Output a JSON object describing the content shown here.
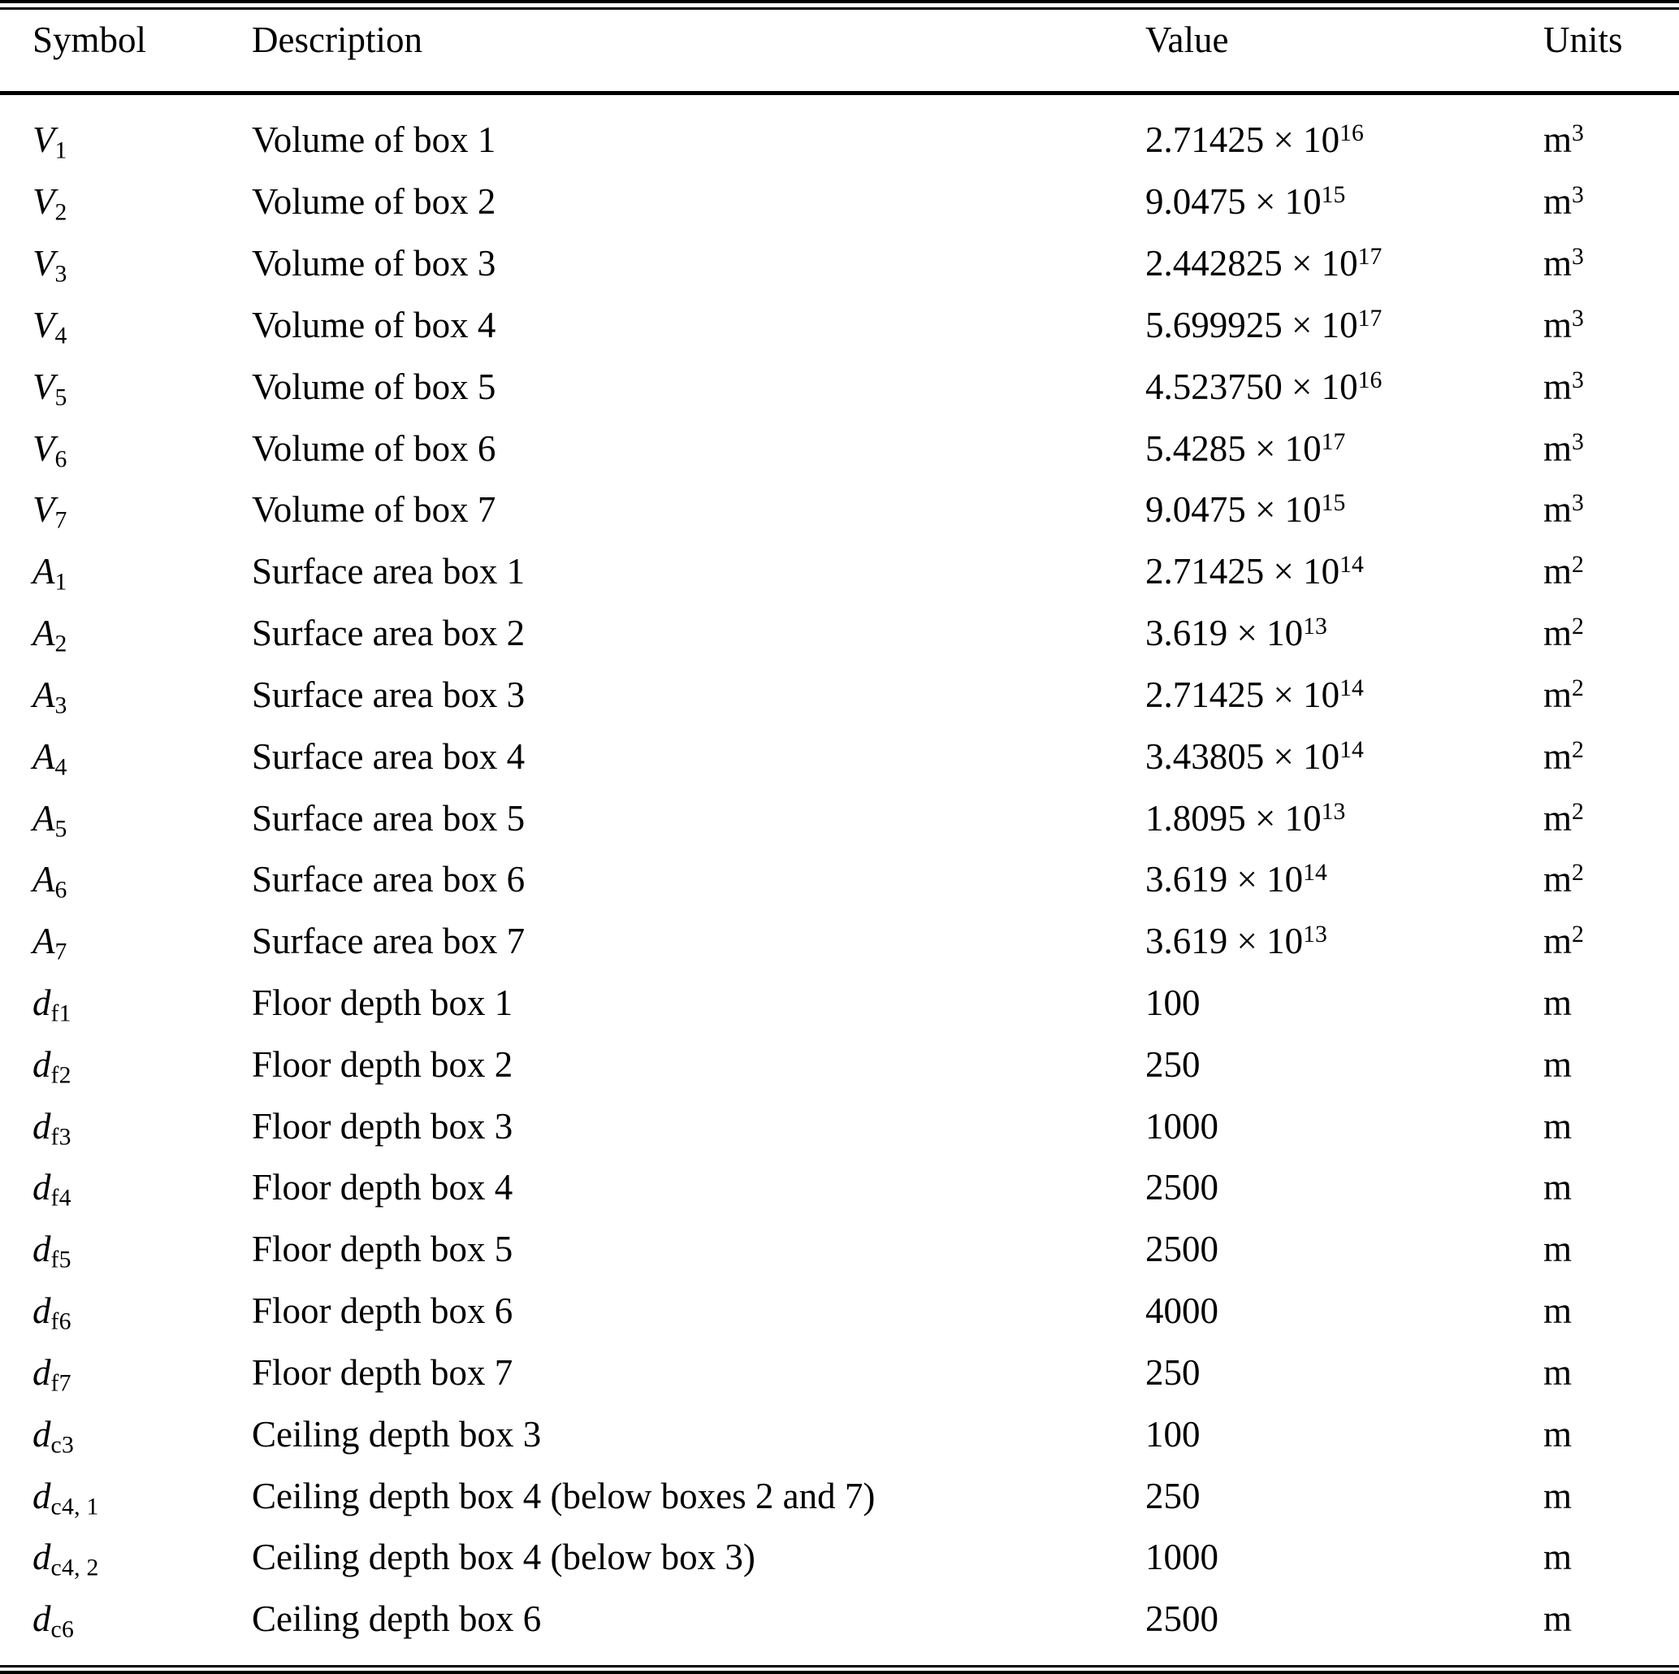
{
  "table": {
    "columns": [
      "Symbol",
      "Description",
      "Value",
      "Units"
    ],
    "rows": [
      {
        "symbol_base": "V",
        "symbol_sub": "1",
        "description": "Volume of box 1",
        "value_main": "2.71425 × 10",
        "value_exp": "16",
        "unit_base": "m",
        "unit_sup": "3"
      },
      {
        "symbol_base": "V",
        "symbol_sub": "2",
        "description": "Volume of box 2",
        "value_main": "9.0475 × 10",
        "value_exp": "15",
        "unit_base": "m",
        "unit_sup": "3"
      },
      {
        "symbol_base": "V",
        "symbol_sub": "3",
        "description": "Volume of box 3",
        "value_main": "2.442825 × 10",
        "value_exp": "17",
        "unit_base": "m",
        "unit_sup": "3"
      },
      {
        "symbol_base": "V",
        "symbol_sub": "4",
        "description": "Volume of box 4",
        "value_main": "5.699925 × 10",
        "value_exp": "17",
        "unit_base": "m",
        "unit_sup": "3"
      },
      {
        "symbol_base": "V",
        "symbol_sub": "5",
        "description": "Volume of box 5",
        "value_main": "4.523750 × 10",
        "value_exp": "16",
        "unit_base": "m",
        "unit_sup": "3"
      },
      {
        "symbol_base": "V",
        "symbol_sub": "6",
        "description": "Volume of box 6",
        "value_main": "5.4285 × 10",
        "value_exp": "17",
        "unit_base": "m",
        "unit_sup": "3"
      },
      {
        "symbol_base": "V",
        "symbol_sub": "7",
        "description": "Volume of box 7",
        "value_main": "9.0475 × 10",
        "value_exp": "15",
        "unit_base": "m",
        "unit_sup": "3"
      },
      {
        "symbol_base": "A",
        "symbol_sub": "1",
        "description": "Surface area box 1",
        "value_main": "2.71425 × 10",
        "value_exp": "14",
        "unit_base": "m",
        "unit_sup": "2"
      },
      {
        "symbol_base": "A",
        "symbol_sub": "2",
        "description": "Surface area box 2",
        "value_main": "3.619 × 10",
        "value_exp": "13",
        "unit_base": "m",
        "unit_sup": "2"
      },
      {
        "symbol_base": "A",
        "symbol_sub": "3",
        "description": "Surface area box 3",
        "value_main": "2.71425 × 10",
        "value_exp": "14",
        "unit_base": "m",
        "unit_sup": "2"
      },
      {
        "symbol_base": "A",
        "symbol_sub": "4",
        "description": "Surface area box 4",
        "value_main": "3.43805 × 10",
        "value_exp": "14",
        "unit_base": "m",
        "unit_sup": "2"
      },
      {
        "symbol_base": "A",
        "symbol_sub": "5",
        "description": "Surface area box 5",
        "value_main": "1.8095 × 10",
        "value_exp": "13",
        "unit_base": "m",
        "unit_sup": "2"
      },
      {
        "symbol_base": "A",
        "symbol_sub": "6",
        "description": "Surface area box 6",
        "value_main": "3.619 × 10",
        "value_exp": "14",
        "unit_base": "m",
        "unit_sup": "2"
      },
      {
        "symbol_base": "A",
        "symbol_sub": "7",
        "description": "Surface area box 7",
        "value_main": "3.619 × 10",
        "value_exp": "13",
        "unit_base": "m",
        "unit_sup": "2"
      },
      {
        "symbol_base": "d",
        "symbol_sub": "f1",
        "description": "Floor depth box 1",
        "value_main": "100",
        "value_exp": "",
        "unit_base": "m",
        "unit_sup": ""
      },
      {
        "symbol_base": "d",
        "symbol_sub": "f2",
        "description": "Floor depth box 2",
        "value_main": "250",
        "value_exp": "",
        "unit_base": "m",
        "unit_sup": ""
      },
      {
        "symbol_base": "d",
        "symbol_sub": "f3",
        "description": "Floor depth box 3",
        "value_main": "1000",
        "value_exp": "",
        "unit_base": "m",
        "unit_sup": ""
      },
      {
        "symbol_base": "d",
        "symbol_sub": "f4",
        "description": "Floor depth box 4",
        "value_main": "2500",
        "value_exp": "",
        "unit_base": "m",
        "unit_sup": ""
      },
      {
        "symbol_base": "d",
        "symbol_sub": "f5",
        "description": "Floor depth box 5",
        "value_main": "2500",
        "value_exp": "",
        "unit_base": "m",
        "unit_sup": ""
      },
      {
        "symbol_base": "d",
        "symbol_sub": "f6",
        "description": "Floor depth box 6",
        "value_main": "4000",
        "value_exp": "",
        "unit_base": "m",
        "unit_sup": ""
      },
      {
        "symbol_base": "d",
        "symbol_sub": "f7",
        "description": "Floor depth box 7",
        "value_main": "250",
        "value_exp": "",
        "unit_base": "m",
        "unit_sup": ""
      },
      {
        "symbol_base": "d",
        "symbol_sub": "c3",
        "description": "Ceiling depth box 3",
        "value_main": "100",
        "value_exp": "",
        "unit_base": "m",
        "unit_sup": ""
      },
      {
        "symbol_base": "d",
        "symbol_sub": "c4, 1",
        "description": "Ceiling depth box 4 (below boxes 2 and 7)",
        "value_main": "250",
        "value_exp": "",
        "unit_base": "m",
        "unit_sup": ""
      },
      {
        "symbol_base": "d",
        "symbol_sub": "c4, 2",
        "description": "Ceiling depth box 4 (below box 3)",
        "value_main": "1000",
        "value_exp": "",
        "unit_base": "m",
        "unit_sup": ""
      },
      {
        "symbol_base": "d",
        "symbol_sub": "c6",
        "description": "Ceiling depth box 6",
        "value_main": "2500",
        "value_exp": "",
        "unit_base": "m",
        "unit_sup": ""
      }
    ]
  }
}
